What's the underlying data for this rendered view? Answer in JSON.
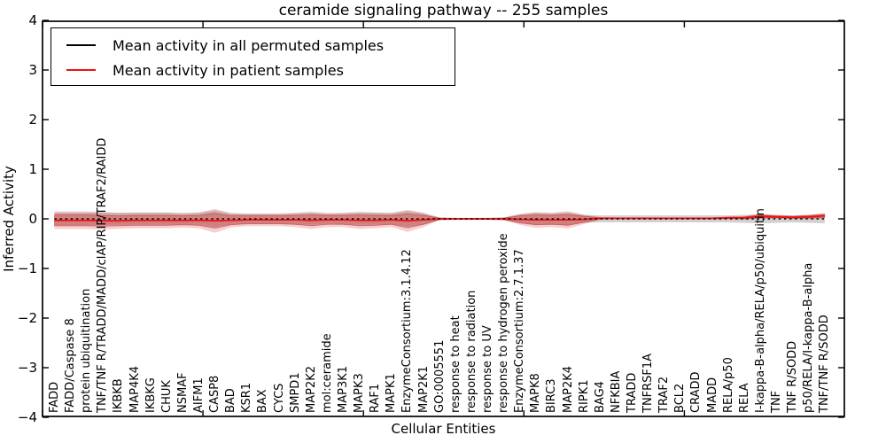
{
  "title": "ceramide signaling pathway -- 255 samples",
  "legend": {
    "items": [
      {
        "label": "Mean activity in all permuted samples",
        "color": "#000000"
      },
      {
        "label": "Mean activity in patient samples",
        "color": "#ee1111"
      }
    ]
  },
  "axes": {
    "ylabel": "Inferred Activity",
    "xlabel": "Cellular Entities",
    "ytick_labels": [
      "4",
      "3",
      "2",
      "1",
      "0",
      "−1",
      "−2",
      "−3",
      "−4"
    ],
    "ytick_values": [
      4,
      3,
      2,
      1,
      0,
      -1,
      -2,
      -3,
      -4
    ]
  },
  "colors": {
    "permuted_line": "#000000",
    "patient_line": "#ee1111",
    "patient_band": "rgba(205,40,40,0.32)",
    "patient_band_outer": "rgba(205,40,40,0.22)",
    "patient_band_edge": "rgba(190,35,35,0.55)",
    "permuted_band": "rgba(150,150,150,0.45)",
    "spine": "#000000"
  },
  "chart_data": {
    "type": "line",
    "title": "ceramide signaling pathway -- 255 samples",
    "xlabel": "Cellular Entities",
    "ylabel": "Inferred Activity",
    "ylim": [
      -4,
      4
    ],
    "grid": false,
    "legend_position": "upper left",
    "categories": [
      "FADD",
      "FADD/Caspase 8",
      "protein ubiquitination",
      "TNF/TNF R/TRADD/MADD/cIAP/RIP/TRAF2/RAIDD",
      "IKBKB",
      "MAP4K4",
      "IKBKG",
      "CHUK",
      "NSMAF",
      "AIFM1",
      "CASP8",
      "BAD",
      "KSR1",
      "BAX",
      "CYCS",
      "SMPD1",
      "MAP2K2",
      "mol:ceramide",
      "MAP3K1",
      "MAPK3",
      "RAF1",
      "MAPK1",
      "EnzymeConsortium:3.1.4.12",
      "MAP2K1",
      "GO:0005551",
      "response to heat",
      "response to radiation",
      "response to UV",
      "response to hydrogen peroxide",
      "EnzymeConsortium:2.7.1.37",
      "MAPK8",
      "BIRC3",
      "MAP2K4",
      "RIPK1",
      "BAG4",
      "NFKBIA",
      "TRADD",
      "TNFRSF1A",
      "TRAF2",
      "BCL2",
      "CRADD",
      "MADD",
      "RELA/p50",
      "RELA",
      "I-kappa-B-alpha/RELA/p50/ubiquitin",
      "TNF",
      "TNF R/SODD",
      "p50/RELA/I-kappa-B-alpha",
      "TNF/TNF R/SODD"
    ],
    "series": [
      {
        "name": "Mean activity in all permuted samples",
        "line_style": "dashed",
        "color": "#000000",
        "values": [
          0,
          0,
          0,
          0,
          0,
          0,
          0,
          0,
          0,
          0,
          0,
          0,
          0,
          0,
          0,
          0,
          0,
          0,
          0,
          0,
          0,
          0,
          0,
          0,
          0,
          0,
          0,
          0,
          0,
          0,
          0,
          0,
          0,
          0,
          0,
          0,
          0,
          0,
          0,
          0,
          0,
          0,
          0,
          0,
          0,
          0,
          0,
          0,
          0
        ],
        "band_halfwidth": [
          0.13,
          0.13,
          0.13,
          0.13,
          0.12,
          0.12,
          0.12,
          0.12,
          0.11,
          0.12,
          0.17,
          0.11,
          0.1,
          0.1,
          0.1,
          0.11,
          0.12,
          0.1,
          0.11,
          0.12,
          0.12,
          0.11,
          0.16,
          0.11,
          0.03,
          0.02,
          0.02,
          0.02,
          0.03,
          0.09,
          0.12,
          0.11,
          0.13,
          0.08,
          0.07,
          0.07,
          0.07,
          0.07,
          0.07,
          0.07,
          0.07,
          0.07,
          0.07,
          0.08,
          0.09,
          0.08,
          0.07,
          0.08,
          0.09
        ]
      },
      {
        "name": "Mean activity in patient samples",
        "line_style": "solid",
        "color": "#ee1111",
        "values": [
          -0.03,
          -0.03,
          -0.03,
          -0.04,
          -0.04,
          -0.03,
          -0.03,
          -0.03,
          -0.03,
          -0.03,
          -0.04,
          -0.03,
          -0.02,
          -0.02,
          -0.02,
          -0.02,
          -0.03,
          -0.02,
          -0.02,
          -0.03,
          -0.03,
          -0.02,
          -0.04,
          -0.02,
          0,
          0,
          0,
          0,
          0,
          -0.01,
          -0.02,
          -0.02,
          -0.02,
          -0.01,
          0.01,
          0.01,
          0.01,
          0.01,
          0.01,
          0.01,
          0.01,
          0.01,
          0.02,
          0.02,
          0.05,
          0.04,
          0.03,
          0.04,
          0.06
        ],
        "band_halfwidth": [
          0.11,
          0.11,
          0.11,
          0.11,
          0.1,
          0.1,
          0.1,
          0.1,
          0.09,
          0.1,
          0.15,
          0.09,
          0.08,
          0.08,
          0.08,
          0.09,
          0.11,
          0.09,
          0.09,
          0.11,
          0.1,
          0.09,
          0.14,
          0.09,
          0.015,
          0.01,
          0.01,
          0.01,
          0.015,
          0.07,
          0.1,
          0.09,
          0.11,
          0.06,
          0.015,
          0.01,
          0.01,
          0.01,
          0.01,
          0.01,
          0.01,
          0.01,
          0.015,
          0.02,
          0.03,
          0.02,
          0.02,
          0.025,
          0.035
        ]
      }
    ]
  }
}
